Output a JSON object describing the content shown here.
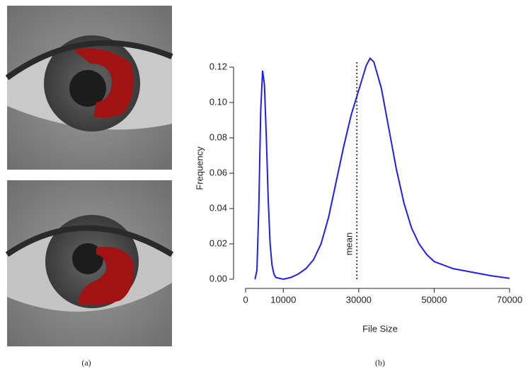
{
  "chart_data": {
    "type": "line",
    "xlabel": "File Size",
    "ylabel": "Frequency",
    "panel_labels": [
      "(a)",
      "(b)"
    ],
    "x": [
      2500,
      3000,
      3500,
      4000,
      4500,
      5000,
      5500,
      6000,
      6500,
      7000,
      7500,
      8000,
      10000,
      12000,
      14000,
      16000,
      18000,
      20000,
      22000,
      24000,
      26000,
      28000,
      30000,
      32000,
      33000,
      34000,
      36000,
      38000,
      40000,
      42000,
      44000,
      46000,
      48000,
      50000,
      55000,
      60000,
      65000,
      70000
    ],
    "values": [
      0,
      0.005,
      0.04,
      0.095,
      0.118,
      0.11,
      0.08,
      0.045,
      0.02,
      0.008,
      0.003,
      0.001,
      0,
      0.001,
      0.003,
      0.006,
      0.011,
      0.02,
      0.035,
      0.055,
      0.075,
      0.093,
      0.107,
      0.121,
      0.125,
      0.123,
      0.108,
      0.085,
      0.062,
      0.043,
      0.029,
      0.02,
      0.014,
      0.01,
      0.006,
      0.004,
      0.002,
      0.0005
    ],
    "color": "#1f1fe6",
    "xlim": [
      0,
      70000
    ],
    "ylim": [
      0,
      0.12
    ],
    "xticks": [
      0,
      10000,
      30000,
      50000,
      70000
    ],
    "yticks": [
      {
        "value": 0,
        "label": "0.00"
      },
      {
        "value": 0.02,
        "label": "0.02"
      },
      {
        "value": 0.04,
        "label": "0.04"
      },
      {
        "value": 0.06,
        "label": "0.06"
      },
      {
        "value": 0.08,
        "label": "0.08"
      },
      {
        "value": 0.1,
        "label": "0.10"
      },
      {
        "value": 0.12,
        "label": "0.12"
      }
    ],
    "annotations": [
      {
        "text": "mean",
        "x": 29500
      }
    ]
  }
}
